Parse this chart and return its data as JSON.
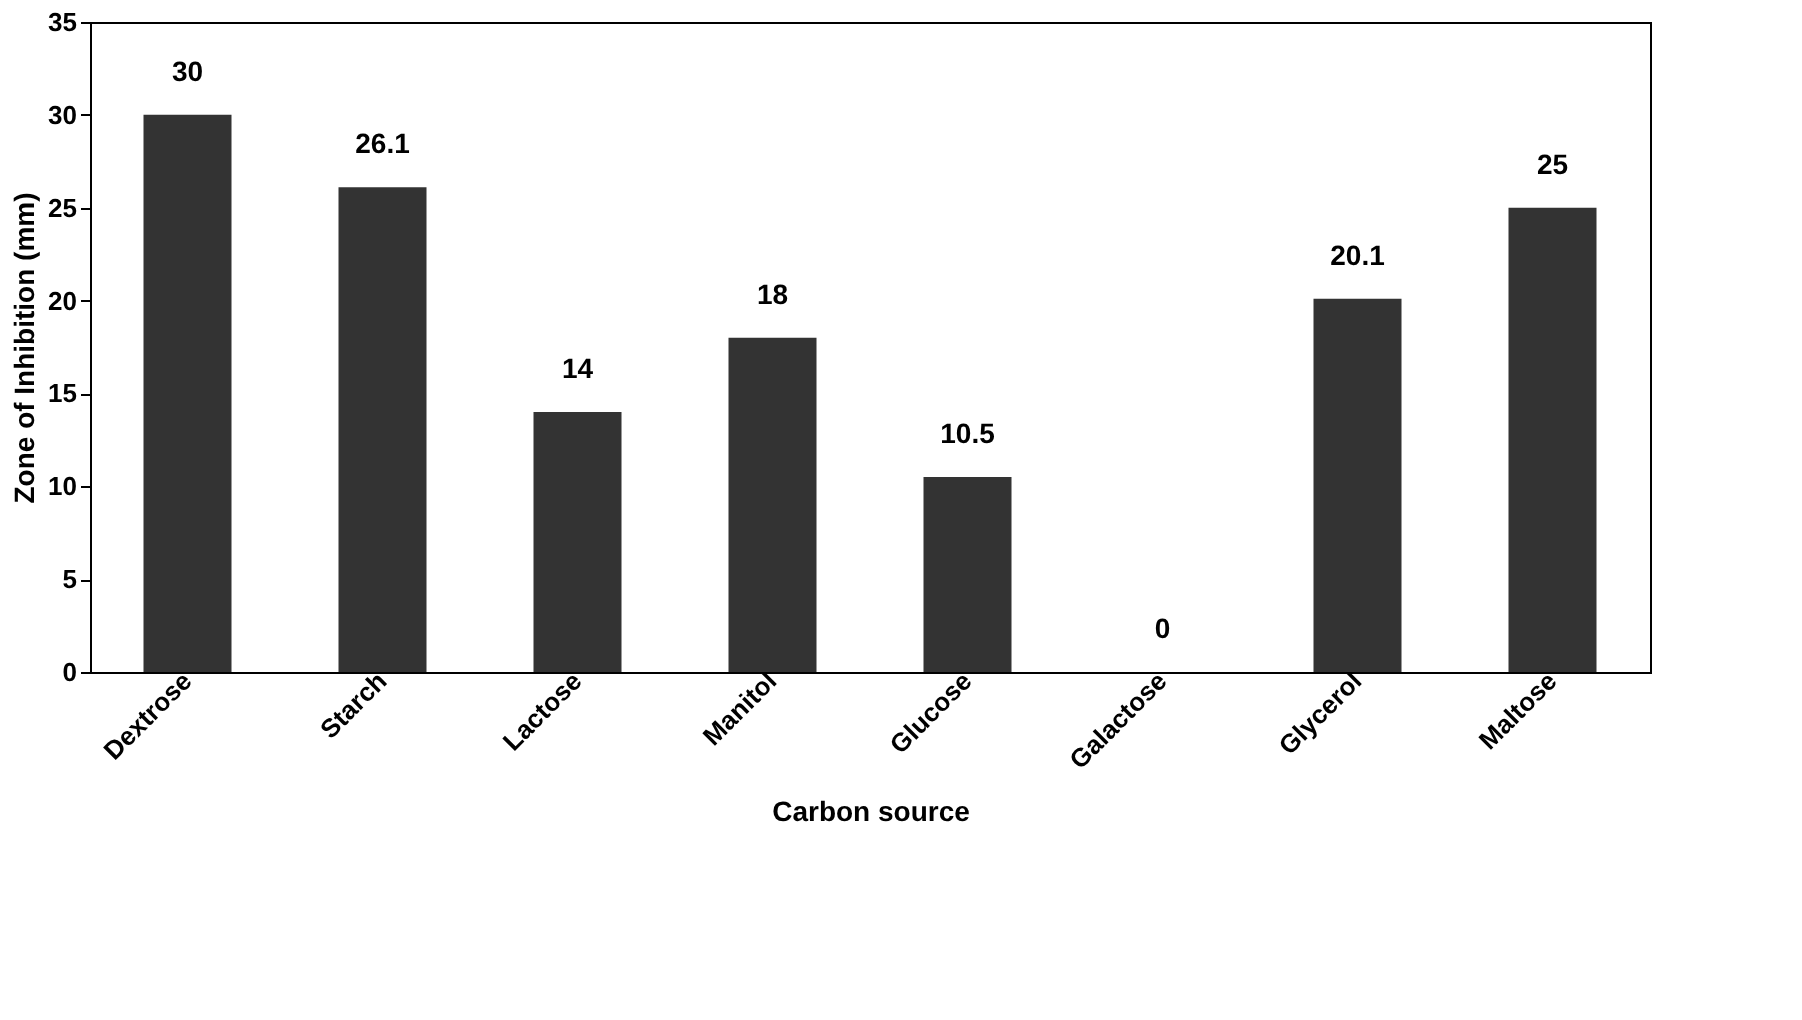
{
  "chart_data": {
    "type": "bar",
    "xlabel": "Carbon source",
    "ylabel": "Zone of Inhibition (mm)",
    "categories": [
      "Dextrose",
      "Starch",
      "Lactose",
      "Manitol",
      "Glucose",
      "Galactose",
      "Glycerol",
      "Maltose"
    ],
    "values": [
      30,
      26.1,
      14,
      18,
      10.5,
      0,
      20.1,
      25
    ],
    "color": "#333333",
    "ylim": [
      0,
      35
    ],
    "yticks": [
      0,
      5,
      10,
      15,
      20,
      25,
      30,
      35
    ],
    "grid": false,
    "data_labels": true
  }
}
